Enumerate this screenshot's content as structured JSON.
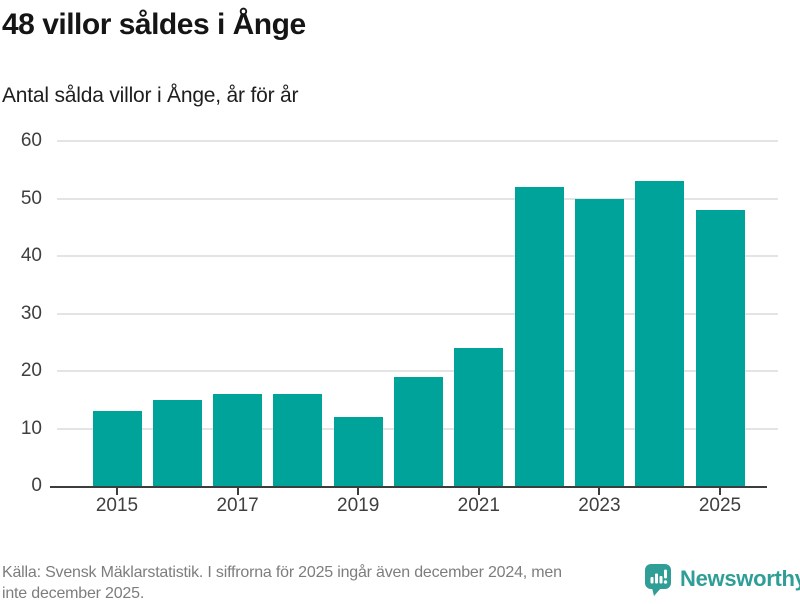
{
  "header": {
    "title": "48 villor såldes i Ånge",
    "subtitle": "Antal sålda villor i Ånge, år för år"
  },
  "chart_data": {
    "type": "bar",
    "title": "48 villor såldes i Ånge",
    "subtitle": "Antal sålda villor i Ånge, år för år",
    "categories": [
      2015,
      2016,
      2017,
      2018,
      2019,
      2020,
      2021,
      2022,
      2023,
      2024,
      2025
    ],
    "values": [
      13,
      15,
      16,
      16,
      12,
      19,
      24,
      52,
      50,
      53,
      48
    ],
    "x_tick_labels": [
      "2015",
      "2017",
      "2019",
      "2021",
      "2023",
      "2025"
    ],
    "y_ticks": [
      0,
      10,
      20,
      30,
      40,
      50,
      60
    ],
    "ylim": [
      0,
      60
    ],
    "xlabel": "",
    "ylabel": "",
    "grid": true,
    "legend": false,
    "bar_color": "#00a39a",
    "gridline_color": "#e4e4e4",
    "axis_color": "#3d3d3d"
  },
  "footer": {
    "source_line1": "Källa: Svensk Mäklarstatistik. I siffrorna för 2025 ingår även december 2024, men",
    "source_line2": "inte december 2025.",
    "brand": {
      "name": "Newsworthy",
      "color": "#2f9e96",
      "icon": "bar-chart-speech-bubble-icon"
    }
  }
}
